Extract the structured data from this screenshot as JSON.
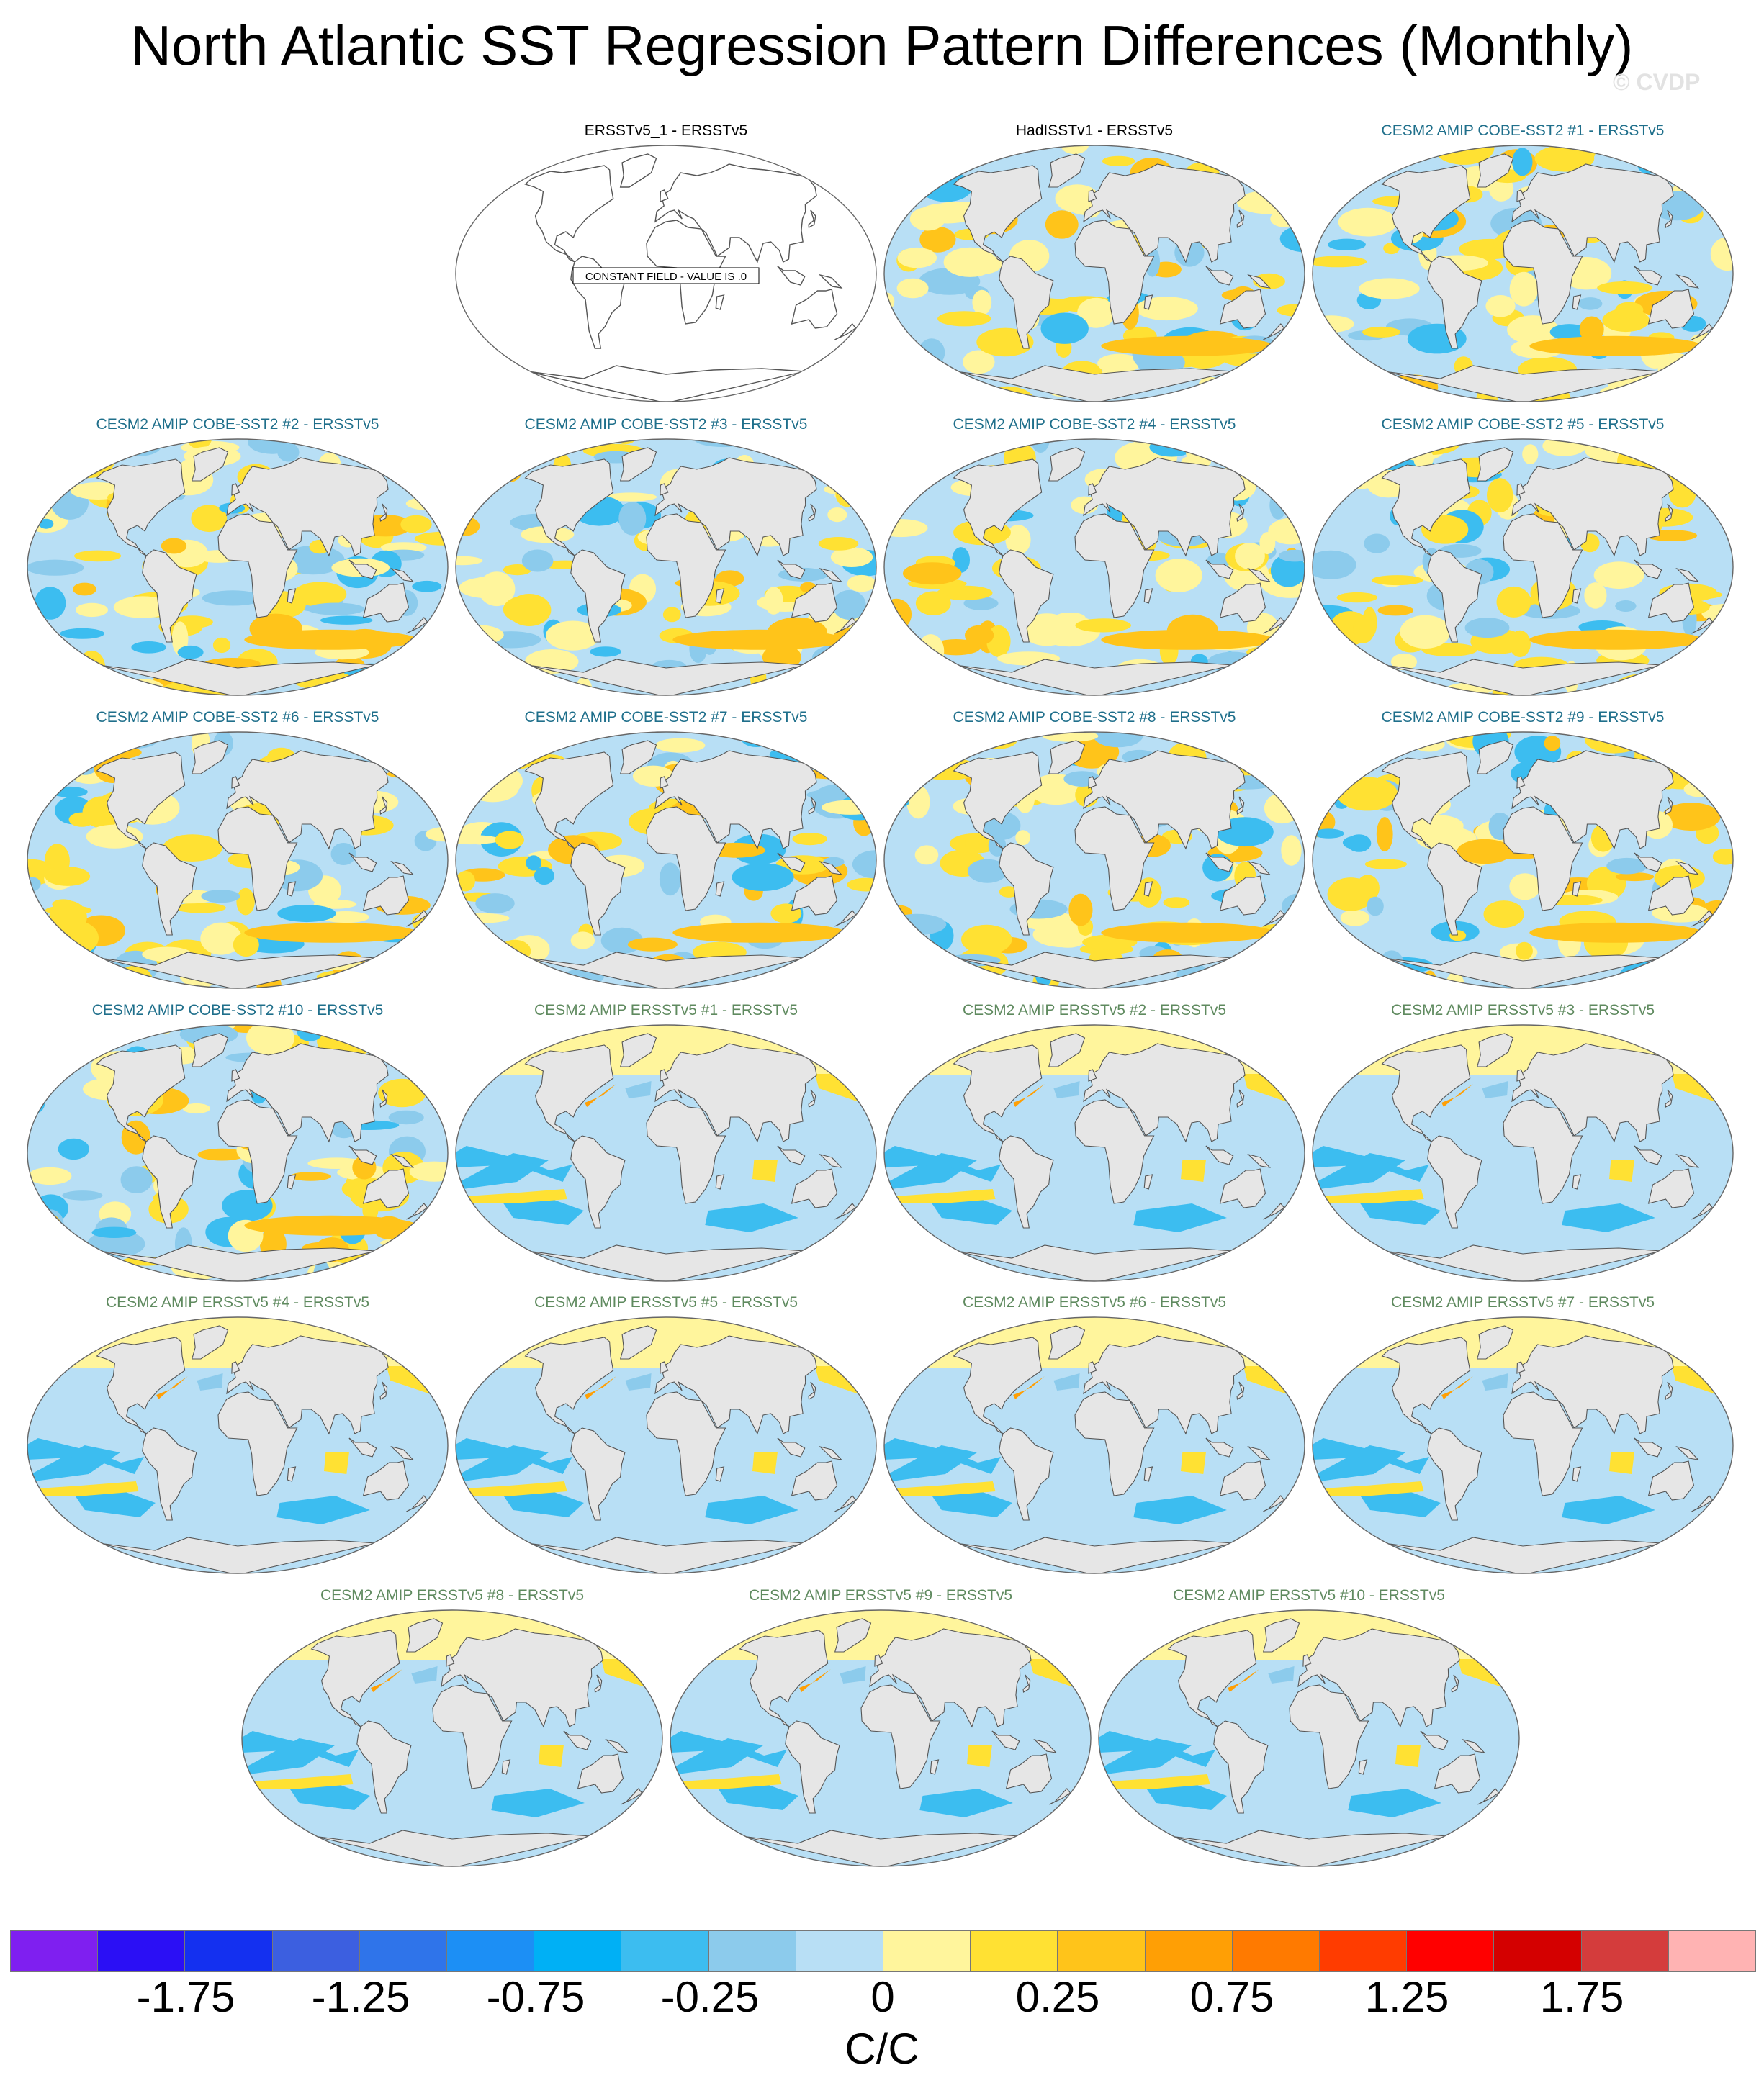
{
  "title": "North Atlantic SST Regression Pattern Differences (Monthly)",
  "watermark": "© CVDP",
  "constant_label": "CONSTANT FIELD - VALUE IS .0",
  "colors": {
    "title_obs": "#000000",
    "title_cobe": "#1f6f8b",
    "title_ersst": "#5f8a5f",
    "ocean_background": "#b8dff5",
    "land": "#e6e6e6",
    "coastline": "#555555"
  },
  "panels": [
    {
      "title": "ERSSTv5_1 - ERSSTv5",
      "group": "obs",
      "pattern": "constant"
    },
    {
      "title": "HadISSTv1 - ERSSTv5",
      "group": "obs",
      "pattern": "noisy"
    },
    {
      "title": "CESM2 AMIP COBE-SST2 #1 - ERSSTv5",
      "group": "cobe",
      "pattern": "noisy"
    },
    {
      "title": "CESM2 AMIP COBE-SST2 #2 - ERSSTv5",
      "group": "cobe",
      "pattern": "noisy"
    },
    {
      "title": "CESM2 AMIP COBE-SST2 #3 - ERSSTv5",
      "group": "cobe",
      "pattern": "noisy"
    },
    {
      "title": "CESM2 AMIP COBE-SST2 #4 - ERSSTv5",
      "group": "cobe",
      "pattern": "noisy"
    },
    {
      "title": "CESM2 AMIP COBE-SST2 #5 - ERSSTv5",
      "group": "cobe",
      "pattern": "noisy"
    },
    {
      "title": "CESM2 AMIP COBE-SST2 #6 - ERSSTv5",
      "group": "cobe",
      "pattern": "noisy"
    },
    {
      "title": "CESM2 AMIP COBE-SST2 #7 - ERSSTv5",
      "group": "cobe",
      "pattern": "noisy"
    },
    {
      "title": "CESM2 AMIP COBE-SST2 #8 - ERSSTv5",
      "group": "cobe",
      "pattern": "noisy"
    },
    {
      "title": "CESM2 AMIP COBE-SST2 #9 - ERSSTv5",
      "group": "cobe",
      "pattern": "noisy"
    },
    {
      "title": "CESM2 AMIP COBE-SST2 #10 - ERSSTv5",
      "group": "cobe",
      "pattern": "noisy"
    },
    {
      "title": "CESM2 AMIP ERSSTv5 #1 - ERSSTv5",
      "group": "ersst",
      "pattern": "smooth"
    },
    {
      "title": "CESM2 AMIP ERSSTv5 #2 - ERSSTv5",
      "group": "ersst",
      "pattern": "smooth"
    },
    {
      "title": "CESM2 AMIP ERSSTv5 #3 - ERSSTv5",
      "group": "ersst",
      "pattern": "smooth"
    },
    {
      "title": "CESM2 AMIP ERSSTv5 #4 - ERSSTv5",
      "group": "ersst",
      "pattern": "smooth"
    },
    {
      "title": "CESM2 AMIP ERSSTv5 #5 - ERSSTv5",
      "group": "ersst",
      "pattern": "smooth"
    },
    {
      "title": "CESM2 AMIP ERSSTv5 #6 - ERSSTv5",
      "group": "ersst",
      "pattern": "smooth"
    },
    {
      "title": "CESM2 AMIP ERSSTv5 #7 - ERSSTv5",
      "group": "ersst",
      "pattern": "smooth"
    },
    {
      "title": "CESM2 AMIP ERSSTv5 #8 - ERSSTv5",
      "group": "ersst",
      "pattern": "smooth"
    },
    {
      "title": "CESM2 AMIP ERSSTv5 #9 - ERSSTv5",
      "group": "ersst",
      "pattern": "smooth"
    },
    {
      "title": "CESM2 AMIP ERSSTv5 #10 - ERSSTv5",
      "group": "ersst",
      "pattern": "smooth"
    }
  ],
  "colorbar": {
    "colors": [
      "#7f1ff0",
      "#2b0ff5",
      "#1430f0",
      "#3c5fe0",
      "#2f74ea",
      "#1c8ff5",
      "#00b0f5",
      "#3cbdf0",
      "#8ccbec",
      "#b8dff5",
      "#fff59c",
      "#ffe133",
      "#ffc41a",
      "#ff9f05",
      "#ff7a00",
      "#ff3c00",
      "#ff0000",
      "#d40000",
      "#d43c3c",
      "#ffb3b3"
    ],
    "tick_labels": [
      "-1.75",
      "-1.25",
      "-0.75",
      "-0.25",
      "0",
      "0.25",
      "0.75",
      "1.25",
      "1.75"
    ],
    "units": "C/C"
  }
}
